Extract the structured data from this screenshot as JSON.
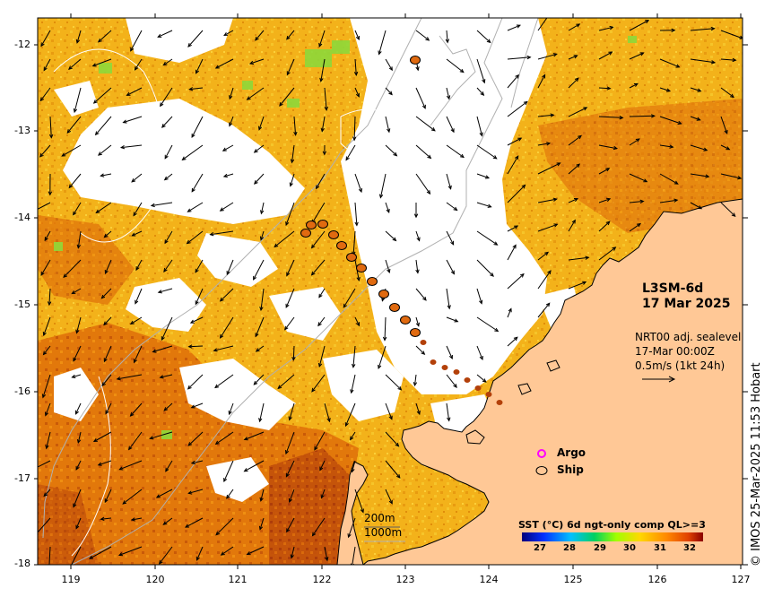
{
  "map": {
    "product": "L3SM-6d",
    "date": "17 Mar 2025",
    "current_info": {
      "line1": "NRT00 adj. sealevel",
      "line2": "17-Mar 00:00Z",
      "line3": "0.5m/s (1kt 24h)"
    },
    "legend": {
      "argo": "Argo",
      "ship": "Ship"
    },
    "colorbar": {
      "title": "SST (°C) 6d ngt-only comp QL>=3",
      "ticks": [
        "27",
        "28",
        "29",
        "30",
        "31",
        "32"
      ],
      "range": [
        26.5,
        32.5
      ]
    },
    "contours": {
      "shallow": "200m",
      "deep": "1000m"
    },
    "credit": "© IMOS 25-Mar-2025 11:53 Hobart",
    "y_axis": {
      "ticks": [
        "-12",
        "-13",
        "-14",
        "-15",
        "-16",
        "-17",
        "-18"
      ],
      "range": [
        -18,
        -11.7
      ]
    },
    "x_axis": {
      "ticks": [
        "119",
        "120",
        "121",
        "122",
        "123",
        "124",
        "125",
        "126",
        "127"
      ],
      "range": [
        118.6,
        127
      ]
    },
    "colors": {
      "land": "#ffc896",
      "coast": "#000000",
      "contour": "#b0b0b0",
      "argo": "#ff00ff",
      "ship": "#000000"
    }
  }
}
